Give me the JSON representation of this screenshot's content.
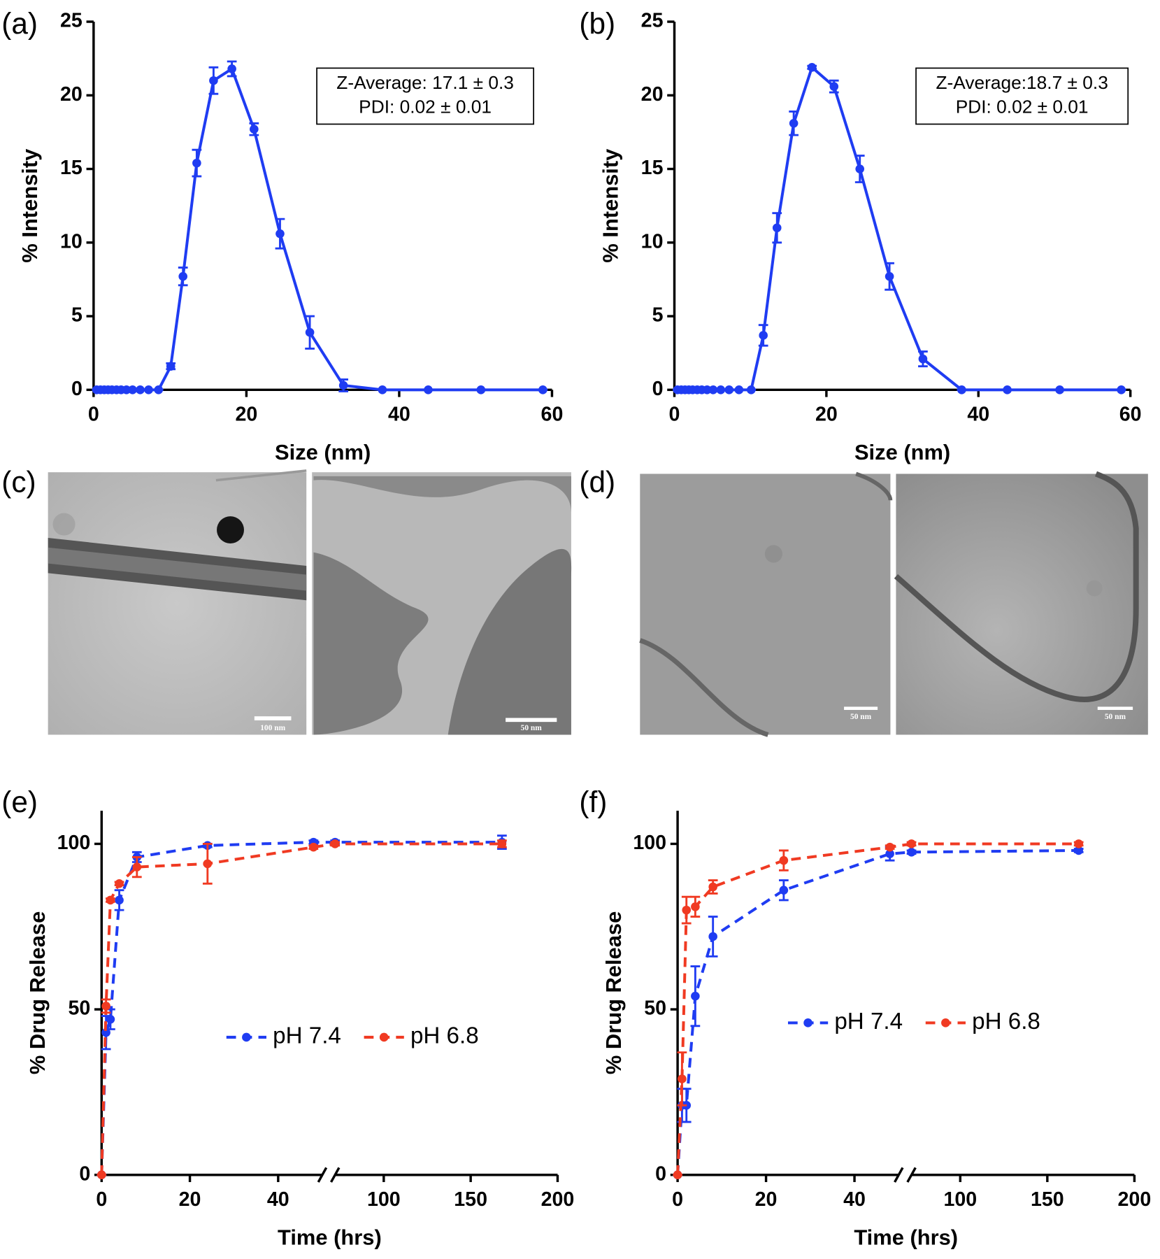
{
  "panels": [
    "(a)",
    "(b)",
    "(c)",
    "(d)",
    "(e)",
    "(f)"
  ],
  "micrographs": [
    {
      "scale_bar": "100 nm"
    },
    {
      "scale_bar": "50 nm"
    },
    {
      "scale_bar": "50 nm"
    },
    {
      "scale_bar": "50 nm"
    }
  ],
  "chart_data": [
    {
      "type": "line",
      "xlabel": "Size (nm)",
      "ylabel": "% Intensity",
      "annotation": [
        "Z-Average: 17.1 ± 0.3",
        "PDI: 0.02 ± 0.01"
      ],
      "x": [
        0.4,
        0.9,
        1.4,
        1.9,
        2.4,
        3.0,
        3.6,
        4.3,
        5.1,
        6.1,
        7.2,
        8.5,
        10.1,
        11.7,
        13.5,
        15.7,
        18.1,
        21.0,
        24.4,
        28.3,
        32.7,
        37.8,
        43.8,
        50.7,
        58.8
      ],
      "values": [
        0,
        0,
        0,
        0,
        0,
        0,
        0,
        0,
        0,
        0,
        0,
        0,
        1.6,
        7.7,
        15.4,
        21.0,
        21.8,
        17.7,
        10.6,
        3.9,
        0.3,
        0,
        0,
        0,
        0
      ],
      "errors": [
        0,
        0,
        0,
        0,
        0,
        0,
        0,
        0,
        0,
        0,
        0,
        0,
        0.2,
        0.6,
        0.9,
        0.9,
        0.5,
        0.4,
        1.0,
        1.1,
        0.4,
        0,
        0,
        0,
        0
      ],
      "color": "#1f3cf2",
      "line_style": "solid",
      "xlim": [
        0,
        60
      ],
      "xticks": [
        0,
        20,
        40,
        60
      ],
      "ylim": [
        0,
        25
      ],
      "yticks": [
        0,
        5,
        10,
        15,
        20,
        25
      ]
    },
    {
      "type": "line",
      "xlabel": "Size (nm)",
      "ylabel": "% Intensity",
      "annotation": [
        "Z-Average:18.7 ± 0.3",
        "PDI: 0.02 ± 0.01"
      ],
      "x": [
        0.4,
        0.9,
        1.4,
        1.9,
        2.4,
        3.0,
        3.6,
        4.3,
        5.1,
        6.1,
        7.2,
        8.5,
        10.1,
        11.7,
        13.5,
        15.7,
        18.1,
        21.0,
        24.4,
        28.3,
        32.7,
        37.8,
        43.8,
        50.7,
        58.8
      ],
      "values": [
        0,
        0,
        0,
        0,
        0,
        0,
        0,
        0,
        0,
        0,
        0,
        0,
        0,
        3.7,
        11.0,
        18.1,
        21.9,
        20.6,
        15.0,
        7.7,
        2.1,
        0,
        0,
        0,
        0
      ],
      "errors": [
        0,
        0,
        0,
        0,
        0,
        0,
        0,
        0,
        0,
        0,
        0,
        0,
        0,
        0.7,
        1.0,
        0.8,
        0.1,
        0.4,
        0.9,
        0.9,
        0.5,
        0,
        0,
        0,
        0
      ],
      "color": "#1f3cf2",
      "line_style": "solid",
      "xlim": [
        0,
        60
      ],
      "xticks": [
        0,
        20,
        40,
        60
      ],
      "ylim": [
        0,
        25
      ],
      "yticks": [
        0,
        5,
        10,
        15,
        20,
        25
      ]
    },
    {
      "type": "line",
      "xlabel": "Time (hrs)",
      "ylabel": "% Drug Release",
      "x": [
        0,
        1,
        2,
        4,
        8,
        24,
        48,
        72,
        168
      ],
      "series": [
        {
          "name": "pH 7.4",
          "color": "#1f3cf2",
          "values": [
            0,
            43,
            47,
            83,
            96,
            99.5,
            100.5,
            100.5,
            100.5
          ],
          "errors": [
            0,
            5,
            3,
            3,
            1.5,
            0.5,
            0.5,
            0.5,
            2
          ]
        },
        {
          "name": "pH 6.8",
          "color": "#f03a22",
          "values": [
            0,
            51,
            83,
            88,
            93,
            94,
            99,
            100,
            100
          ],
          "errors": [
            0,
            2,
            0.5,
            0.5,
            3,
            6,
            0.5,
            0.5,
            1
          ]
        }
      ],
      "line_style": "dashed",
      "legend": "center",
      "xlim": [
        0,
        200
      ],
      "xbreak": [
        50,
        72
      ],
      "xticks": [
        0,
        20,
        40,
        100,
        150,
        200
      ],
      "ylim": [
        0,
        110
      ],
      "yticks": [
        0,
        50,
        100
      ]
    },
    {
      "type": "line",
      "xlabel": "Time (hrs)",
      "ylabel": "% Drug Release",
      "x": [
        0,
        1,
        2,
        4,
        8,
        24,
        48,
        72,
        168
      ],
      "series": [
        {
          "name": "pH 7.4",
          "color": "#1f3cf2",
          "values": [
            0,
            21,
            21,
            54,
            72,
            86,
            97,
            97.5,
            98
          ],
          "errors": [
            0,
            5,
            5,
            9,
            6,
            3,
            2,
            0.5,
            0.5
          ]
        },
        {
          "name": "pH 6.8",
          "color": "#f03a22",
          "values": [
            0,
            29,
            80,
            81,
            87,
            95,
            99,
            100,
            100
          ],
          "errors": [
            0,
            8,
            4,
            3,
            2,
            3,
            0.5,
            0.5,
            0.5
          ]
        }
      ],
      "line_style": "dashed",
      "legend": "center",
      "xlim": [
        0,
        200
      ],
      "xbreak": [
        50,
        72
      ],
      "xticks": [
        0,
        20,
        40,
        100,
        150,
        200
      ],
      "ylim": [
        0,
        110
      ],
      "yticks": [
        0,
        50,
        100
      ]
    }
  ]
}
